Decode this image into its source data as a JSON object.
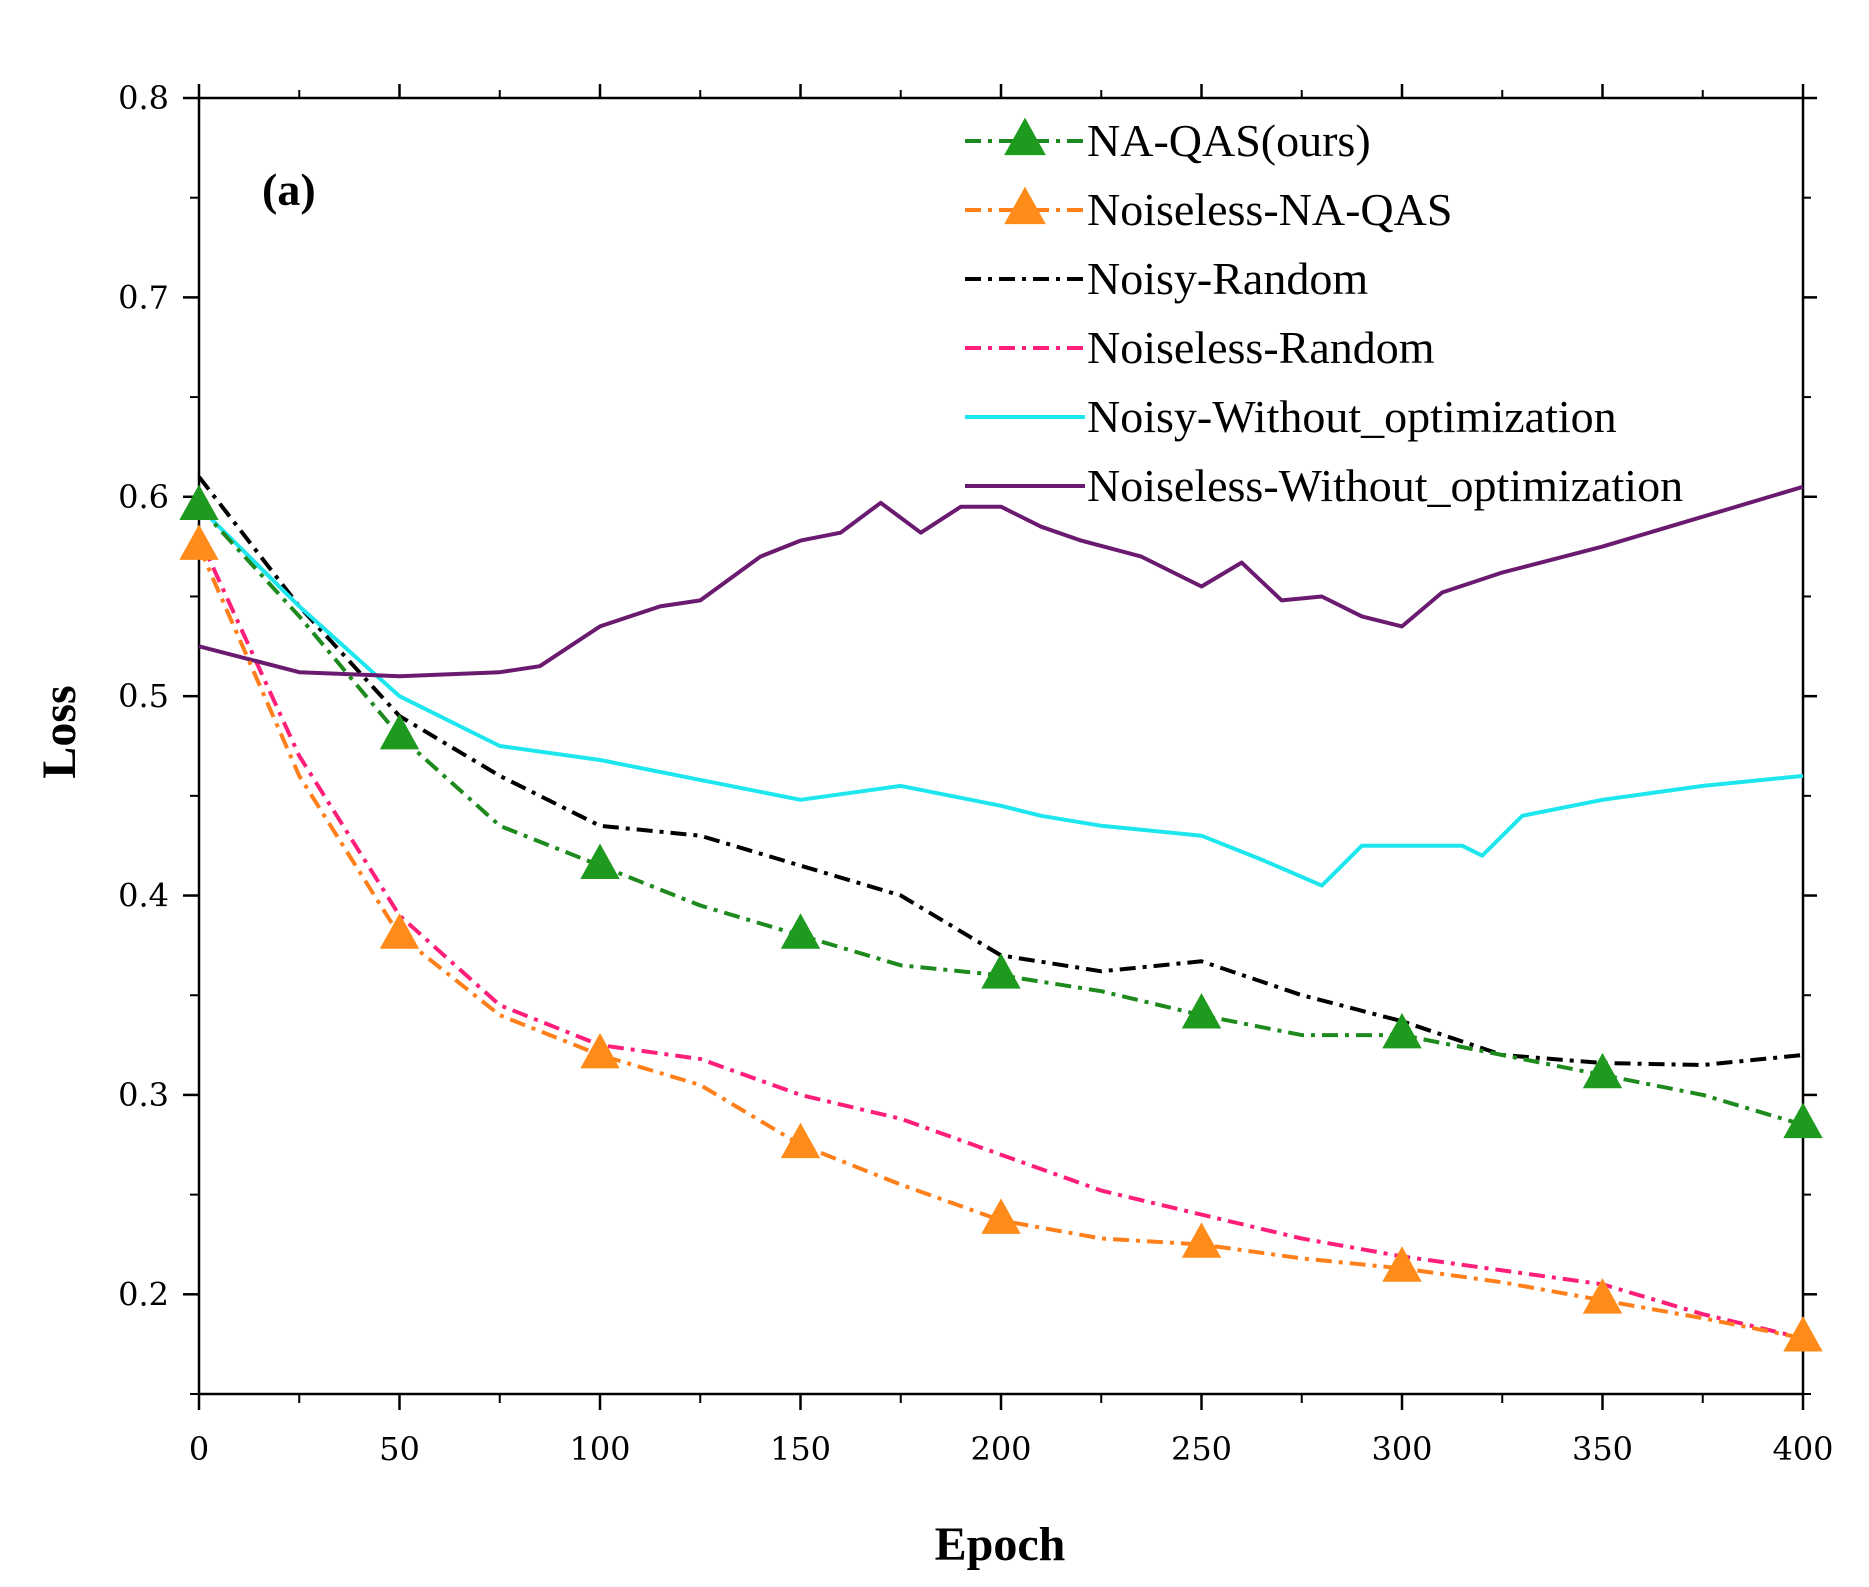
{
  "chart_data": {
    "type": "line",
    "panel_label": "(a)",
    "xlabel": "Epoch",
    "ylabel": "Loss",
    "xlim": [
      0,
      400
    ],
    "ylim": [
      0.15,
      0.8
    ],
    "xticks": [
      0,
      50,
      100,
      150,
      200,
      250,
      300,
      350,
      400
    ],
    "xtick_labels": [
      "0",
      "50",
      "100",
      "150",
      "200",
      "250",
      "300",
      "350",
      "400"
    ],
    "yticks": [
      0.2,
      0.3,
      0.4,
      0.5,
      0.6,
      0.7,
      0.8
    ],
    "ytick_labels": [
      "0.2",
      "0.3",
      "0.4",
      "0.5",
      "0.6",
      "0.7",
      "0.8"
    ],
    "legend_position": "top-right",
    "series": [
      {
        "name": "NA-QAS(ours)",
        "color": "#1e8a1e",
        "dash": "dashdot",
        "marker": "triangle",
        "marker_color": "#1e9a1e",
        "x": [
          0,
          25,
          50,
          75,
          100,
          125,
          150,
          175,
          200,
          225,
          250,
          275,
          300,
          325,
          350,
          375,
          400
        ],
        "y": [
          0.595,
          0.54,
          0.48,
          0.435,
          0.415,
          0.395,
          0.38,
          0.365,
          0.36,
          0.352,
          0.34,
          0.33,
          0.33,
          0.32,
          0.31,
          0.3,
          0.285
        ],
        "marker_x": [
          0,
          50,
          100,
          150,
          200,
          250,
          300,
          350,
          400
        ],
        "marker_y": [
          0.595,
          0.48,
          0.415,
          0.38,
          0.36,
          0.34,
          0.33,
          0.31,
          0.285
        ]
      },
      {
        "name": "Noiseless-NA-QAS",
        "color": "#ff7f1a",
        "dash": "dashdot",
        "marker": "triangle",
        "marker_color": "#ff8c1a",
        "x": [
          0,
          25,
          50,
          75,
          100,
          125,
          150,
          175,
          200,
          225,
          250,
          275,
          300,
          325,
          350,
          375,
          400
        ],
        "y": [
          0.575,
          0.46,
          0.38,
          0.34,
          0.32,
          0.305,
          0.275,
          0.255,
          0.237,
          0.228,
          0.225,
          0.218,
          0.213,
          0.206,
          0.197,
          0.188,
          0.178
        ],
        "marker_x": [
          0,
          50,
          100,
          150,
          200,
          250,
          300,
          350,
          400
        ],
        "marker_y": [
          0.575,
          0.38,
          0.32,
          0.275,
          0.237,
          0.225,
          0.213,
          0.197,
          0.178
        ]
      },
      {
        "name": "Noisy-Random",
        "color": "#000000",
        "dash": "dashdot",
        "marker": "none",
        "x": [
          0,
          25,
          50,
          75,
          100,
          125,
          150,
          175,
          200,
          225,
          250,
          275,
          300,
          325,
          350,
          375,
          400
        ],
        "y": [
          0.61,
          0.545,
          0.49,
          0.46,
          0.435,
          0.43,
          0.415,
          0.4,
          0.37,
          0.362,
          0.367,
          0.35,
          0.337,
          0.32,
          0.316,
          0.315,
          0.32
        ]
      },
      {
        "name": "Noiseless-Random",
        "color": "#ff1f7a",
        "dash": "dashdot",
        "marker": "none",
        "x": [
          0,
          25,
          50,
          75,
          100,
          125,
          150,
          175,
          200,
          225,
          250,
          275,
          300,
          325,
          350,
          375,
          400
        ],
        "y": [
          0.58,
          0.47,
          0.39,
          0.345,
          0.325,
          0.318,
          0.3,
          0.288,
          0.27,
          0.252,
          0.24,
          0.228,
          0.219,
          0.212,
          0.205,
          0.19,
          0.178
        ]
      },
      {
        "name": "Noisy-Without_optimization",
        "color": "#1ee6ee",
        "dash": "solid",
        "marker": "none",
        "x": [
          0,
          25,
          50,
          75,
          100,
          125,
          150,
          175,
          200,
          210,
          225,
          250,
          265,
          280,
          290,
          300,
          315,
          320,
          330,
          350,
          375,
          400
        ],
        "y": [
          0.595,
          0.545,
          0.5,
          0.475,
          0.468,
          0.458,
          0.448,
          0.455,
          0.445,
          0.44,
          0.435,
          0.43,
          0.418,
          0.405,
          0.425,
          0.425,
          0.425,
          0.42,
          0.44,
          0.448,
          0.455,
          0.46
        ]
      },
      {
        "name": "Noiseless-Without_optimization",
        "color": "#6a1b70",
        "dash": "solid",
        "marker": "none",
        "x": [
          0,
          25,
          50,
          75,
          85,
          100,
          115,
          125,
          140,
          150,
          160,
          170,
          180,
          190,
          200,
          210,
          220,
          235,
          250,
          260,
          270,
          280,
          290,
          300,
          310,
          325,
          350,
          375,
          400
        ],
        "y": [
          0.525,
          0.512,
          0.51,
          0.512,
          0.515,
          0.535,
          0.545,
          0.548,
          0.57,
          0.578,
          0.582,
          0.597,
          0.582,
          0.595,
          0.595,
          0.585,
          0.578,
          0.57,
          0.555,
          0.567,
          0.548,
          0.55,
          0.54,
          0.535,
          0.552,
          0.562,
          0.575,
          0.59,
          0.605
        ]
      }
    ]
  }
}
